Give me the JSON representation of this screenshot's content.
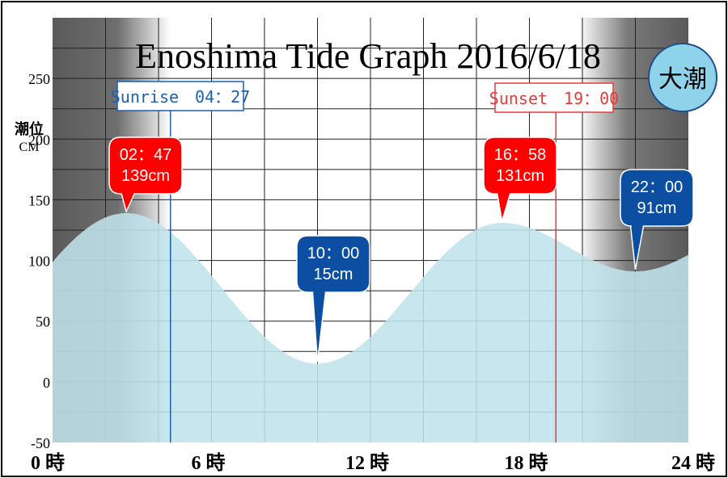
{
  "chart_data": {
    "type": "area",
    "title": "Enoshima Tide Graph 2016/6/18",
    "tide_badge": "大潮",
    "y_unit_label_1": "潮位",
    "y_unit_label_2": "CM",
    "xlabel": "",
    "ylabel": "潮位 CM",
    "xlim": [
      0,
      24
    ],
    "ylim": [
      -50,
      300
    ],
    "x_ticks": [
      {
        "value": 0,
        "label": "0 時"
      },
      {
        "value": 6,
        "label": "6 時"
      },
      {
        "value": 12,
        "label": "12 時"
      },
      {
        "value": 18,
        "label": "18 時"
      },
      {
        "value": 24,
        "label": "24 時"
      }
    ],
    "y_ticks": [
      {
        "value": 250,
        "label": "250"
      },
      {
        "value": 200,
        "label": "200"
      },
      {
        "value": 150,
        "label": "150"
      },
      {
        "value": 100,
        "label": "100"
      },
      {
        "value": 50,
        "label": "50"
      },
      {
        "value": 0,
        "label": "0"
      },
      {
        "value": -50,
        "label": "-50"
      }
    ],
    "grid": true,
    "extremes": [
      {
        "time": "02：47",
        "hour": 2.783,
        "level": 139,
        "level_label": "139cm",
        "kind": "high"
      },
      {
        "time": "10：00",
        "hour": 10.0,
        "level": 15,
        "level_label": "15cm",
        "kind": "low"
      },
      {
        "time": "16：58",
        "hour": 16.967,
        "level": 131,
        "level_label": "131cm",
        "kind": "high"
      },
      {
        "time": "22：00",
        "hour": 22.0,
        "level": 91,
        "level_label": "91cm",
        "kind": "low"
      }
    ],
    "sunrise": {
      "label": "Sunrise　04：27",
      "hour": 4.45
    },
    "sunset": {
      "label": "Sunset　19：00",
      "hour": 19.0
    },
    "colors": {
      "tide_fill": "#bfe3ec",
      "high_marker": "#ff0000",
      "low_marker": "#0b4ea2",
      "sunrise": "#1f5fb0",
      "sunset": "#e43b3b",
      "badge": "#8fd3ea",
      "night": "#555555"
    }
  }
}
